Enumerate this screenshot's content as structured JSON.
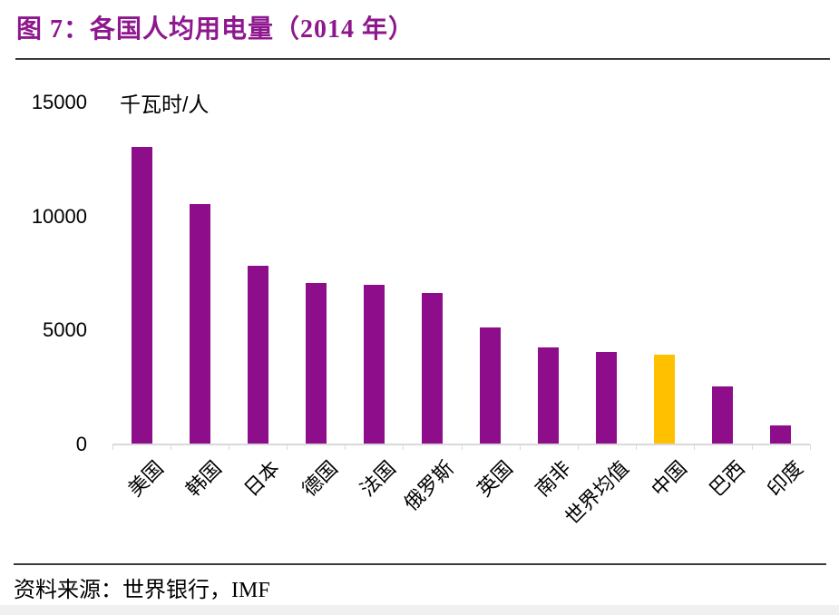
{
  "figure": {
    "title": "图 7：各国人均用电量（2014 年）",
    "source_label": "资料来源：世界银行，IMF"
  },
  "chart_data": {
    "type": "bar",
    "title": "各国人均用电量（2014 年）",
    "unit_label": "千瓦时/人",
    "categories": [
      "美国",
      "韩国",
      "日本",
      "德国",
      "法国",
      "俄罗斯",
      "英国",
      "南非",
      "世界均值",
      "中国",
      "巴西",
      "印度"
    ],
    "values": [
      13000,
      10500,
      7800,
      7050,
      6950,
      6600,
      5100,
      4200,
      4000,
      3900,
      2500,
      800
    ],
    "highlight_category": "中国",
    "xlabel": "",
    "ylabel": "千瓦时/人",
    "ylim": [
      0,
      15000
    ],
    "yticks": [
      0,
      5000,
      10000,
      15000
    ],
    "grid": false,
    "legend": false,
    "bar_color": "#8E0D8A",
    "highlight_color": "#FFC000"
  },
  "colors": {
    "title_text": "#8E178E",
    "divider": "#3A3A3A",
    "axis_line": "#D9D9D9",
    "tick_text": "#000000",
    "bottom_band": "#F0F0F1"
  }
}
